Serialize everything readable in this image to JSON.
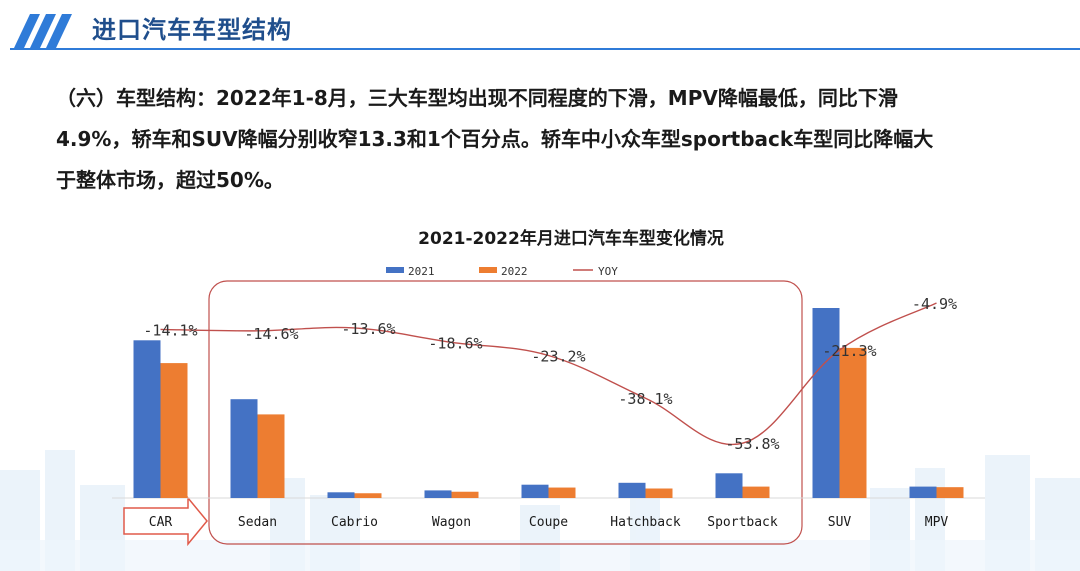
{
  "header": {
    "title": "进口汽车车型结构"
  },
  "paragraph": {
    "lines": [
      "（六）车型结构：2022年1-8月，三大车型均出现不同程度的下滑，MPV降幅最低，同比下滑",
      "4.9%，轿车和SUV降幅分别收窄13.3和1个百分点。轿车中小众车型sportback车型同比降幅大",
      "于整体市场，超过50%。"
    ]
  },
  "colors": {
    "header_blue": "#1f4e8c",
    "bar_2021": "#4472c4",
    "bar_2022": "#ed7d31",
    "yoy_line": "#c0504d",
    "highlight_box": "#c0504d"
  },
  "chart_data": {
    "type": "bar",
    "title": "2021-2022年月进口汽车车型变化情况",
    "categories": [
      "CAR",
      "Sedan",
      "Cabrio",
      "Wagon",
      "Coupe",
      "Hatchback",
      "Sportback",
      "SUV",
      "MPV"
    ],
    "series": [
      {
        "name": "2021",
        "values": [
          83,
          52,
          3,
          4,
          7,
          8,
          13,
          100,
          6
        ]
      },
      {
        "name": "2022",
        "values": [
          71,
          44,
          2.5,
          3.3,
          5.5,
          5,
          6,
          79,
          5.7
        ]
      }
    ],
    "line_series": {
      "name": "YOY",
      "values": [
        -14.1,
        -14.6,
        -13.6,
        -18.6,
        -23.2,
        -38.1,
        -53.8,
        -21.3,
        -4.9
      ],
      "labels": [
        "-14.1%",
        "-14.6%",
        "-13.6%",
        "-18.6%",
        "-23.2%",
        "-38.1%",
        "-53.8%",
        "-21.3%",
        "-4.9%"
      ]
    },
    "legend": [
      "2021",
      "2022",
      "YOY"
    ],
    "legend_position": "top",
    "xlabel": "",
    "ylabel": "",
    "ylim": [
      0,
      110
    ],
    "y2lim": [
      -65,
      0
    ],
    "grid": false
  }
}
